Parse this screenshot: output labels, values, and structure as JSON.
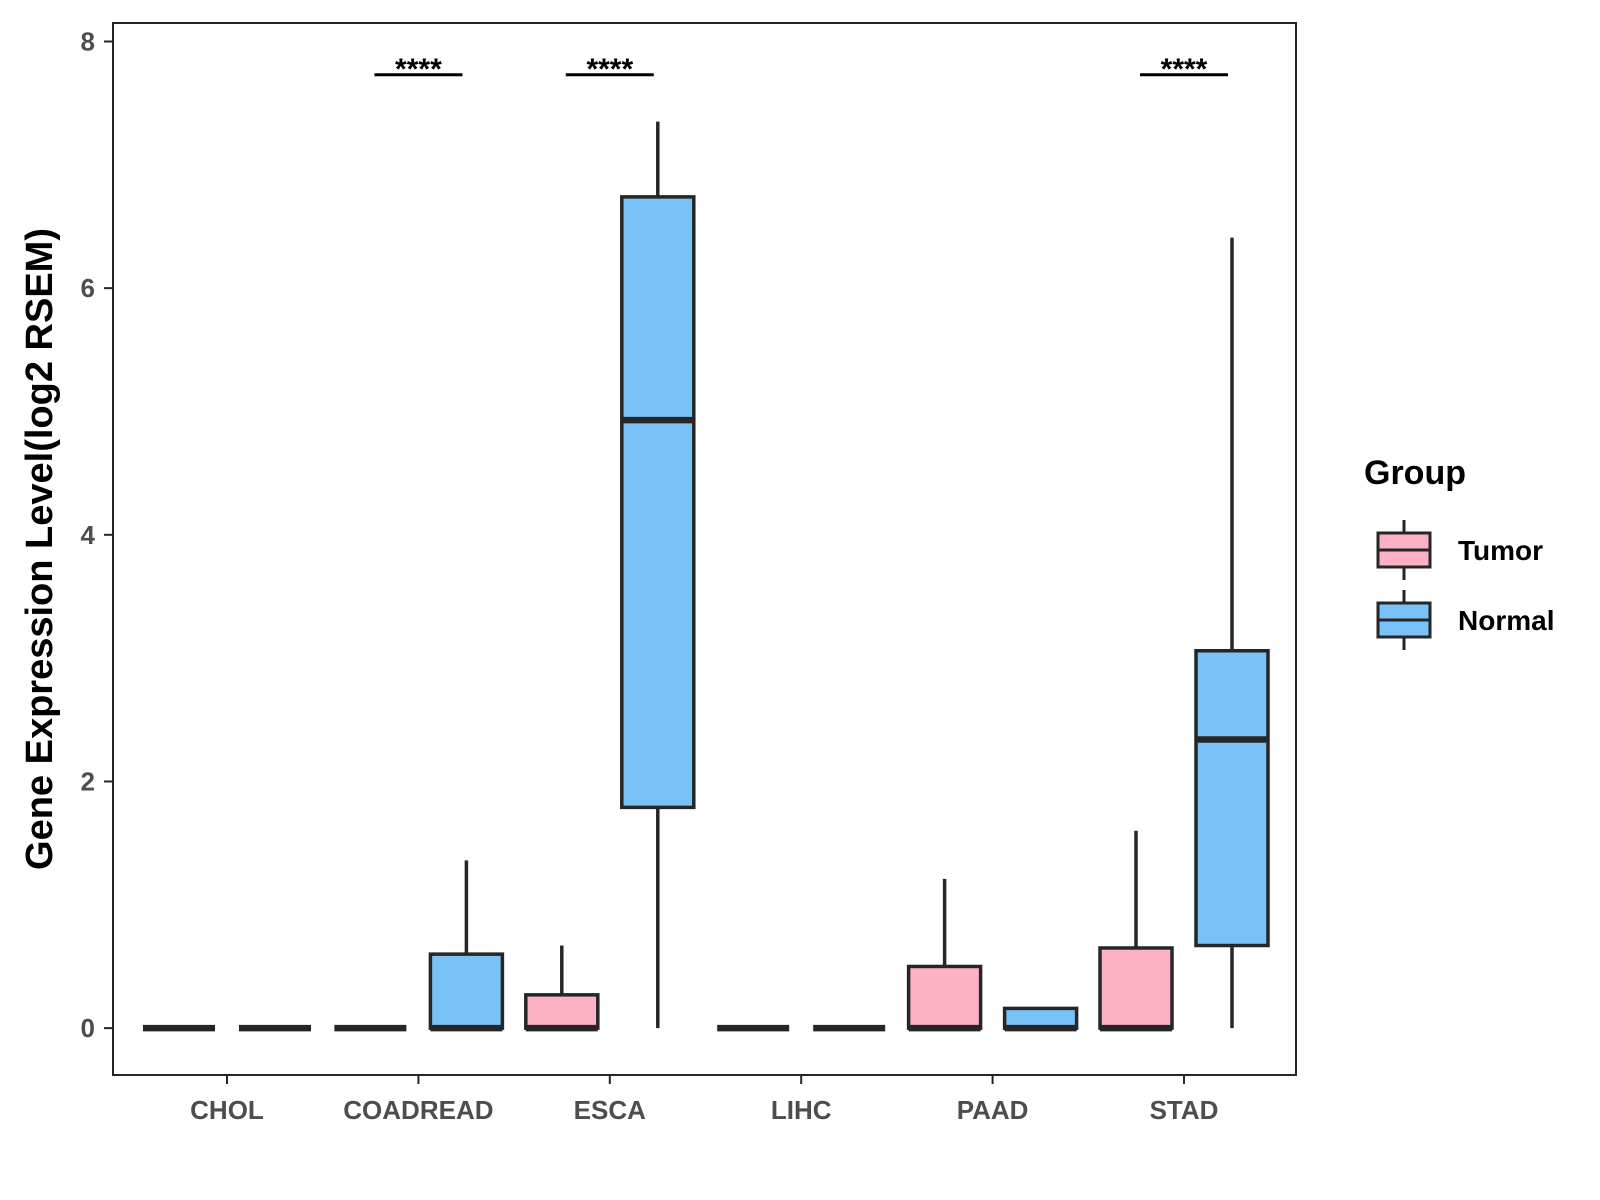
{
  "chart_data": {
    "type": "boxplot",
    "title": "",
    "xlabel": "",
    "ylabel": "Gene Expression Level(log2 RSEM)",
    "ylim": [
      -0.38,
      8.15
    ],
    "yticks": [
      0,
      2,
      4,
      6,
      8
    ],
    "grid": false,
    "legend_position": "right",
    "legend_title": "Group",
    "categories": [
      "CHOL",
      "COADREAD",
      "ESCA",
      "LIHC",
      "PAAD",
      "STAD"
    ],
    "series": [
      {
        "name": "Tumor",
        "color": "#FDB1C4",
        "boxes": [
          {
            "lower": 0,
            "q1": 0,
            "median": 0,
            "q3": 0,
            "upper": 0
          },
          {
            "lower": 0,
            "q1": 0,
            "median": 0,
            "q3": 0,
            "upper": 0
          },
          {
            "lower": 0,
            "q1": 0,
            "median": 0,
            "q3": 0.27,
            "upper": 0.67
          },
          {
            "lower": 0,
            "q1": 0,
            "median": 0,
            "q3": 0,
            "upper": 0
          },
          {
            "lower": 0,
            "q1": 0,
            "median": 0,
            "q3": 0.5,
            "upper": 1.21
          },
          {
            "lower": 0,
            "q1": 0,
            "median": 0,
            "q3": 0.65,
            "upper": 1.6
          }
        ]
      },
      {
        "name": "Normal",
        "color": "#79C2F8",
        "boxes": [
          {
            "lower": 0,
            "q1": 0,
            "median": 0,
            "q3": 0,
            "upper": 0
          },
          {
            "lower": 0,
            "q1": 0,
            "median": 0,
            "q3": 0.6,
            "upper": 1.36
          },
          {
            "lower": 0,
            "q1": 1.79,
            "median": 4.93,
            "q3": 6.74,
            "upper": 7.35
          },
          {
            "lower": 0,
            "q1": 0,
            "median": 0,
            "q3": 0,
            "upper": 0
          },
          {
            "lower": 0,
            "q1": 0,
            "median": 0,
            "q3": 0.16,
            "upper": 0.16
          },
          {
            "lower": 0,
            "q1": 0.67,
            "median": 2.34,
            "q3": 3.06,
            "upper": 6.41
          }
        ]
      }
    ],
    "annotations": [
      {
        "category": "COADREAD",
        "text": "****",
        "y": 7.73
      },
      {
        "category": "ESCA",
        "text": "****",
        "y": 7.73
      },
      {
        "category": "STAD",
        "text": "****",
        "y": 7.73
      }
    ],
    "colors": {
      "box_outline": "#262626",
      "axis": "#262626",
      "tick_text": "#4d4d4d"
    }
  }
}
